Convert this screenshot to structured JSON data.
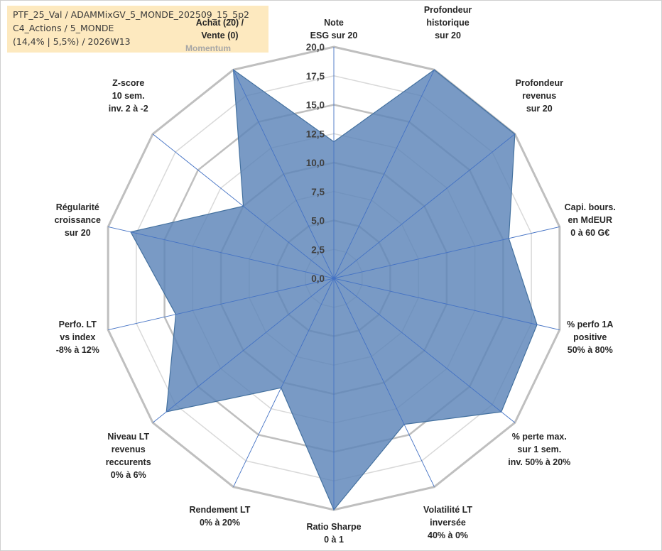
{
  "info_box": {
    "line1": "PTF_25_Val / ADAMMixGV_5_MONDE_202509_15_5p2",
    "line2": "C4_Actions / 5_MONDE",
    "line3": "(14,4% | 5,5%) / 2026W13"
  },
  "chart_data": {
    "type": "radar",
    "title": "",
    "rmin": 0,
    "rmax": 20,
    "ticks": [
      "0,0",
      "2,5",
      "5,0",
      "7,5",
      "10,0",
      "12,5",
      "15,0",
      "17,5",
      "20,0"
    ],
    "grid": true,
    "categories": [
      [
        "Note",
        "ESG sur 20"
      ],
      [
        "Profondeur",
        "historique",
        "sur 20"
      ],
      [
        "Profondeur",
        "revenus",
        "sur 20"
      ],
      [
        "Capi. bours.",
        "en MdEUR",
        "0 à 60 G€"
      ],
      [
        "% perfo 1A",
        "positive",
        "50% à 80%"
      ],
      [
        "% perte max.",
        "sur 1 sem.",
        "inv. 50% à 20%"
      ],
      [
        "Volatilité LT",
        "inversée",
        "40% à 0%"
      ],
      [
        "Ratio Sharpe",
        "0 à 1"
      ],
      [
        "Rendement LT",
        "0% à 20%"
      ],
      [
        "Niveau LT",
        "revenus",
        "reccurents",
        "0% à 6%"
      ],
      [
        "Perfo. LT",
        "vs index",
        "-8% à 12%"
      ],
      [
        "Régularité",
        "croissance",
        "sur 20"
      ],
      [
        "Z-score",
        "10 sem.",
        "inv. 2 à -2"
      ],
      [
        "Achat (20) /",
        "Vente (0)"
      ]
    ],
    "series": [
      {
        "name": "Momentum",
        "color": "#5b84b8",
        "values": [
          11.8,
          20,
          20,
          15.5,
          18,
          18.5,
          14,
          20,
          10.5,
          18.5,
          14,
          18,
          10,
          20
        ]
      }
    ]
  }
}
